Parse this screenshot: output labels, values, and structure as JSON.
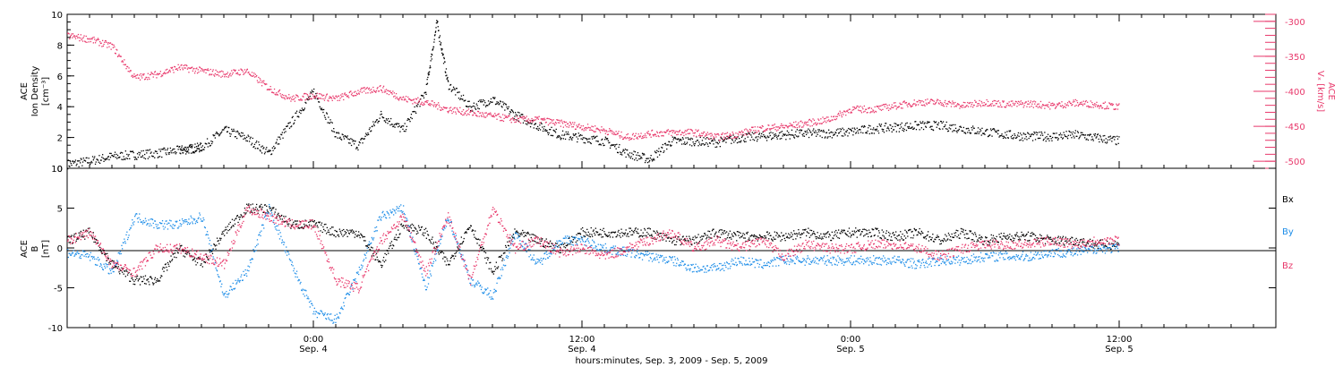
{
  "colors": {
    "black": "#000000",
    "blue": "#1f8ee8",
    "red": "#e8386b"
  },
  "xaxis": {
    "ticks": [
      {
        "time": "0:00",
        "date": "Sep. 4",
        "hours": 24
      },
      {
        "time": "12:00",
        "date": "Sep. 4",
        "hours": 36
      },
      {
        "time": "0:00",
        "date": "Sep. 5",
        "hours": 48
      },
      {
        "time": "12:00",
        "date": "Sep. 5",
        "hours": 60
      }
    ],
    "title": "hours:minutes, Sep.  3, 2009 - Sep.  5, 2009"
  },
  "chart_data": [
    {
      "type": "scatter",
      "panel": "top",
      "ylabel_left": [
        "ACE",
        "Ion Density",
        "[cm⁻³]"
      ],
      "ylabel_right": [
        "ACE",
        "Vₓ [km/s]"
      ],
      "ylim_left": [
        0,
        10
      ],
      "yticks_left": [
        0,
        2,
        4,
        6,
        8,
        10
      ],
      "ylim_right": [
        -510,
        -290
      ],
      "yticks_right": [
        -500,
        -450,
        -400,
        -350,
        -300
      ],
      "xlim_hours": [
        13,
        67
      ],
      "series": [
        {
          "key": "density",
          "color": "#000000",
          "axis": "left",
          "x": [
            13,
            14,
            15,
            16,
            17,
            18,
            18.5,
            19,
            20,
            21,
            22,
            23,
            24,
            25,
            26,
            27,
            28,
            29,
            29.5,
            30,
            31,
            32,
            33,
            34,
            35,
            36,
            37,
            38,
            39,
            40,
            41,
            42,
            43,
            44,
            45,
            46,
            47,
            48,
            49,
            50,
            51,
            52,
            53,
            54,
            55,
            56,
            57,
            58,
            59,
            60
          ],
          "y": [
            0.3,
            0.5,
            0.8,
            0.9,
            1.0,
            1.2,
            1.3,
            1.4,
            2.5,
            2.0,
            1.0,
            3.0,
            5.0,
            2.2,
            1.5,
            3.5,
            2.5,
            5.0,
            9.5,
            5.5,
            4.0,
            4.5,
            3.5,
            2.8,
            2.2,
            2.0,
            1.8,
            1.0,
            0.6,
            1.8,
            1.8,
            1.7,
            2.0,
            2.1,
            2.2,
            2.3,
            2.3,
            2.4,
            2.6,
            2.7,
            2.8,
            2.8,
            2.6,
            2.4,
            2.2,
            2.1,
            2.1,
            2.2,
            2.0,
            1.8
          ]
        },
        {
          "key": "vx",
          "color": "#e8386b",
          "axis": "right",
          "x": [
            13,
            14,
            15,
            16,
            17,
            18,
            19,
            20,
            21,
            22,
            23,
            24,
            25,
            26,
            27,
            28,
            29,
            30,
            31,
            32,
            33,
            34,
            35,
            36,
            37,
            38,
            39,
            40,
            41,
            42,
            43,
            44,
            45,
            46,
            47,
            48,
            49,
            50,
            51,
            52,
            53,
            54,
            55,
            56,
            57,
            58,
            59,
            60
          ],
          "y": [
            -320,
            -325,
            -335,
            -380,
            -375,
            -365,
            -370,
            -375,
            -370,
            -395,
            -410,
            -405,
            -410,
            -400,
            -395,
            -410,
            -415,
            -425,
            -430,
            -435,
            -440,
            -440,
            -445,
            -450,
            -455,
            -465,
            -460,
            -458,
            -458,
            -465,
            -460,
            -452,
            -450,
            -445,
            -440,
            -425,
            -425,
            -420,
            -415,
            -415,
            -420,
            -415,
            -418,
            -417,
            -420,
            -416,
            -418,
            -422
          ]
        }
      ]
    },
    {
      "type": "scatter",
      "panel": "bottom",
      "ylabel_left": [
        "ACE",
        "B",
        "[nT]"
      ],
      "ylim": [
        -10,
        10
      ],
      "yticks": [
        -10,
        -5,
        0,
        5,
        10
      ],
      "xlim_hours": [
        13,
        67
      ],
      "legend": [
        "Bx",
        "By",
        "Bz"
      ],
      "series": [
        {
          "key": "Bx",
          "name": "Bx",
          "color": "#000000",
          "x": [
            13,
            14,
            15,
            16,
            17,
            18,
            19,
            20,
            21,
            22,
            23,
            24,
            25,
            26,
            27,
            28,
            29,
            30,
            31,
            32,
            33,
            34,
            35,
            36,
            37,
            38,
            39,
            40,
            41,
            42,
            43,
            44,
            45,
            46,
            47,
            48,
            49,
            50,
            51,
            52,
            53,
            54,
            55,
            56,
            57,
            58,
            59,
            60
          ],
          "y": [
            1,
            2,
            -2,
            -4,
            -4,
            0,
            -2,
            2,
            5,
            5,
            3,
            3,
            2,
            2,
            -2,
            3,
            2,
            -2,
            3,
            -3,
            2,
            1,
            0,
            2,
            2,
            2,
            2,
            1,
            1,
            2,
            1.5,
            1.5,
            1.5,
            2,
            1.5,
            2,
            2,
            1.5,
            2,
            1,
            2,
            1,
            1.5,
            1.5,
            1,
            1,
            0.5,
            0.5
          ]
        },
        {
          "key": "By",
          "name": "By",
          "color": "#1f8ee8",
          "x": [
            13,
            14,
            15,
            16,
            17,
            18,
            19,
            20,
            21,
            22,
            23,
            24,
            25,
            26,
            27,
            28,
            29,
            30,
            31,
            32,
            33,
            34,
            35,
            36,
            37,
            38,
            39,
            40,
            41,
            42,
            43,
            44,
            45,
            46,
            47,
            48,
            49,
            50,
            51,
            52,
            53,
            54,
            55,
            56,
            57,
            58,
            59,
            60
          ],
          "y": [
            -0.5,
            -1,
            -3,
            4,
            3,
            3,
            4,
            -6,
            -3,
            5,
            -2,
            -8,
            -9,
            -3,
            4,
            5,
            -5,
            4,
            -4,
            -6,
            2,
            -2,
            1,
            1,
            0,
            -0.5,
            -1,
            -1.5,
            -2.5,
            -2.5,
            -1.5,
            -2,
            -1.5,
            -1.5,
            -1.5,
            -1.5,
            -1.5,
            -1.5,
            -2,
            -1.5,
            -1.5,
            -1,
            -1,
            -1,
            -0.5,
            -0.5,
            0,
            0
          ]
        },
        {
          "key": "Bz",
          "name": "Bz",
          "color": "#e8386b",
          "x": [
            13,
            14,
            15,
            16,
            17,
            18,
            19,
            20,
            21,
            22,
            23,
            24,
            25,
            26,
            27,
            28,
            29,
            30,
            31,
            32,
            33,
            34,
            35,
            36,
            37,
            38,
            39,
            40,
            41,
            42,
            43,
            44,
            45,
            46,
            47,
            48,
            49,
            50,
            51,
            52,
            53,
            54,
            55,
            56,
            57,
            58,
            59,
            60
          ],
          "y": [
            1,
            2,
            -2,
            -3,
            0,
            0,
            -1,
            -2,
            5,
            4,
            3,
            3,
            -4,
            -5,
            1,
            4,
            -3,
            4,
            -4,
            5,
            0,
            1,
            -0.5,
            0,
            -1,
            0,
            1,
            2,
            0,
            1,
            0,
            1,
            -1,
            0.5,
            0,
            0,
            0.5,
            0.5,
            0,
            -1,
            0,
            0.5,
            0.5,
            0.5,
            1,
            0.5,
            1,
            1
          ]
        }
      ]
    }
  ]
}
